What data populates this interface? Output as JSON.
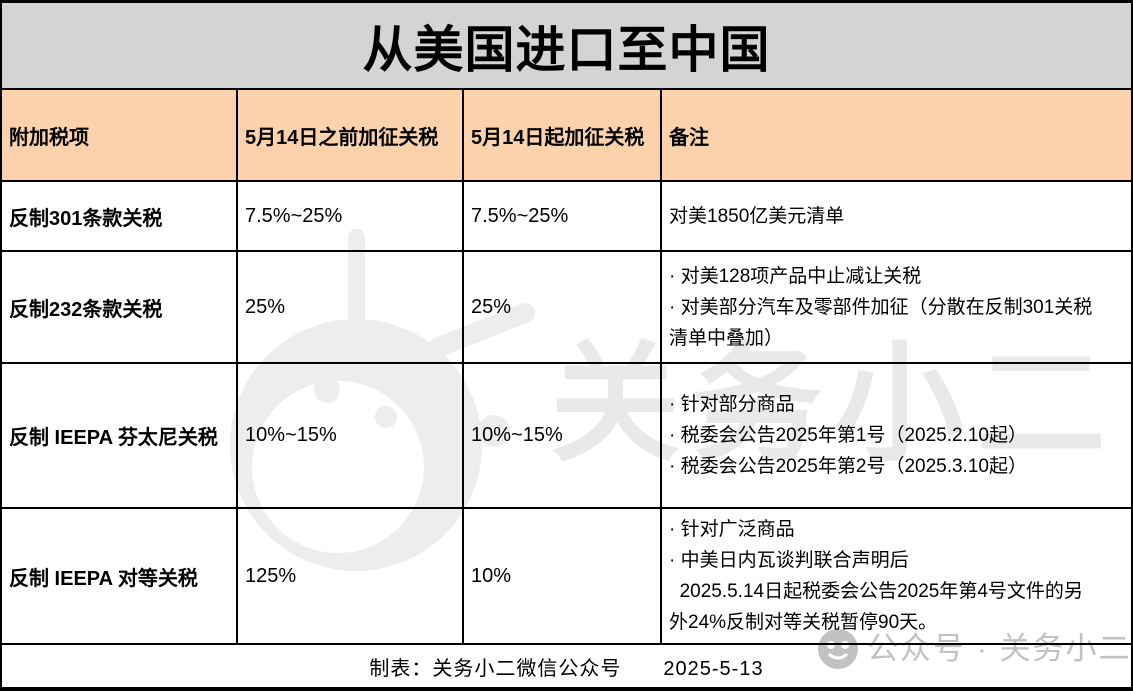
{
  "title": "从美国进口至中国",
  "table": {
    "columns": [
      "附加税项",
      "5月14日之前加征关税",
      "5月14日起加征关税",
      "备注"
    ],
    "rows": [
      {
        "item": "反制301条款关税",
        "rate_before_may14": "7.5%~25%",
        "rate_from_may14": "7.5%~25%",
        "notes": [
          "对美1850亿美元清单"
        ]
      },
      {
        "item": "反制232条款关税",
        "rate_before_may14": "25%",
        "rate_from_may14": "25%",
        "notes": [
          "· 对美128项产品中止减让关税",
          "· 对美部分汽车及零部件加征（分散在反制301关税",
          "清单中叠加）"
        ]
      },
      {
        "item": "反制 IEEPA 芬太尼关税",
        "rate_before_may14": "10%~15%",
        "rate_from_may14": "10%~15%",
        "notes": [
          "· 针对部分商品",
          "· 税委会公告2025年第1号（2025.2.10起）",
          "· 税委会公告2025年第2号（2025.3.10起）"
        ]
      },
      {
        "item": "反制 IEEPA 对等关税",
        "rate_before_may14": "125%",
        "rate_from_may14": "10%",
        "notes": [
          "· 针对广泛商品",
          "· 中美日内瓦谈判联合声明后",
          "  2025.5.14日起税委会公告2025年第4号文件的另",
          "外24%反制对等关税暂停90天。"
        ]
      }
    ]
  },
  "footer": {
    "text": "制表：关务小二微信公众号　　2025-5-13"
  },
  "watermarks": {
    "center_logo": "guanwu-xiaoer-robot-logo",
    "center_text": "关务小二",
    "corner_badge_text": "公众号 · 关务小二"
  },
  "colors": {
    "title_bg": "#d4d4d4",
    "header_bg": "#fbd2ab",
    "border": "#000000",
    "watermark_light": "#ededed",
    "watermark_text": "#e9e9e9",
    "watermark_badge": "#c2c2c2"
  }
}
